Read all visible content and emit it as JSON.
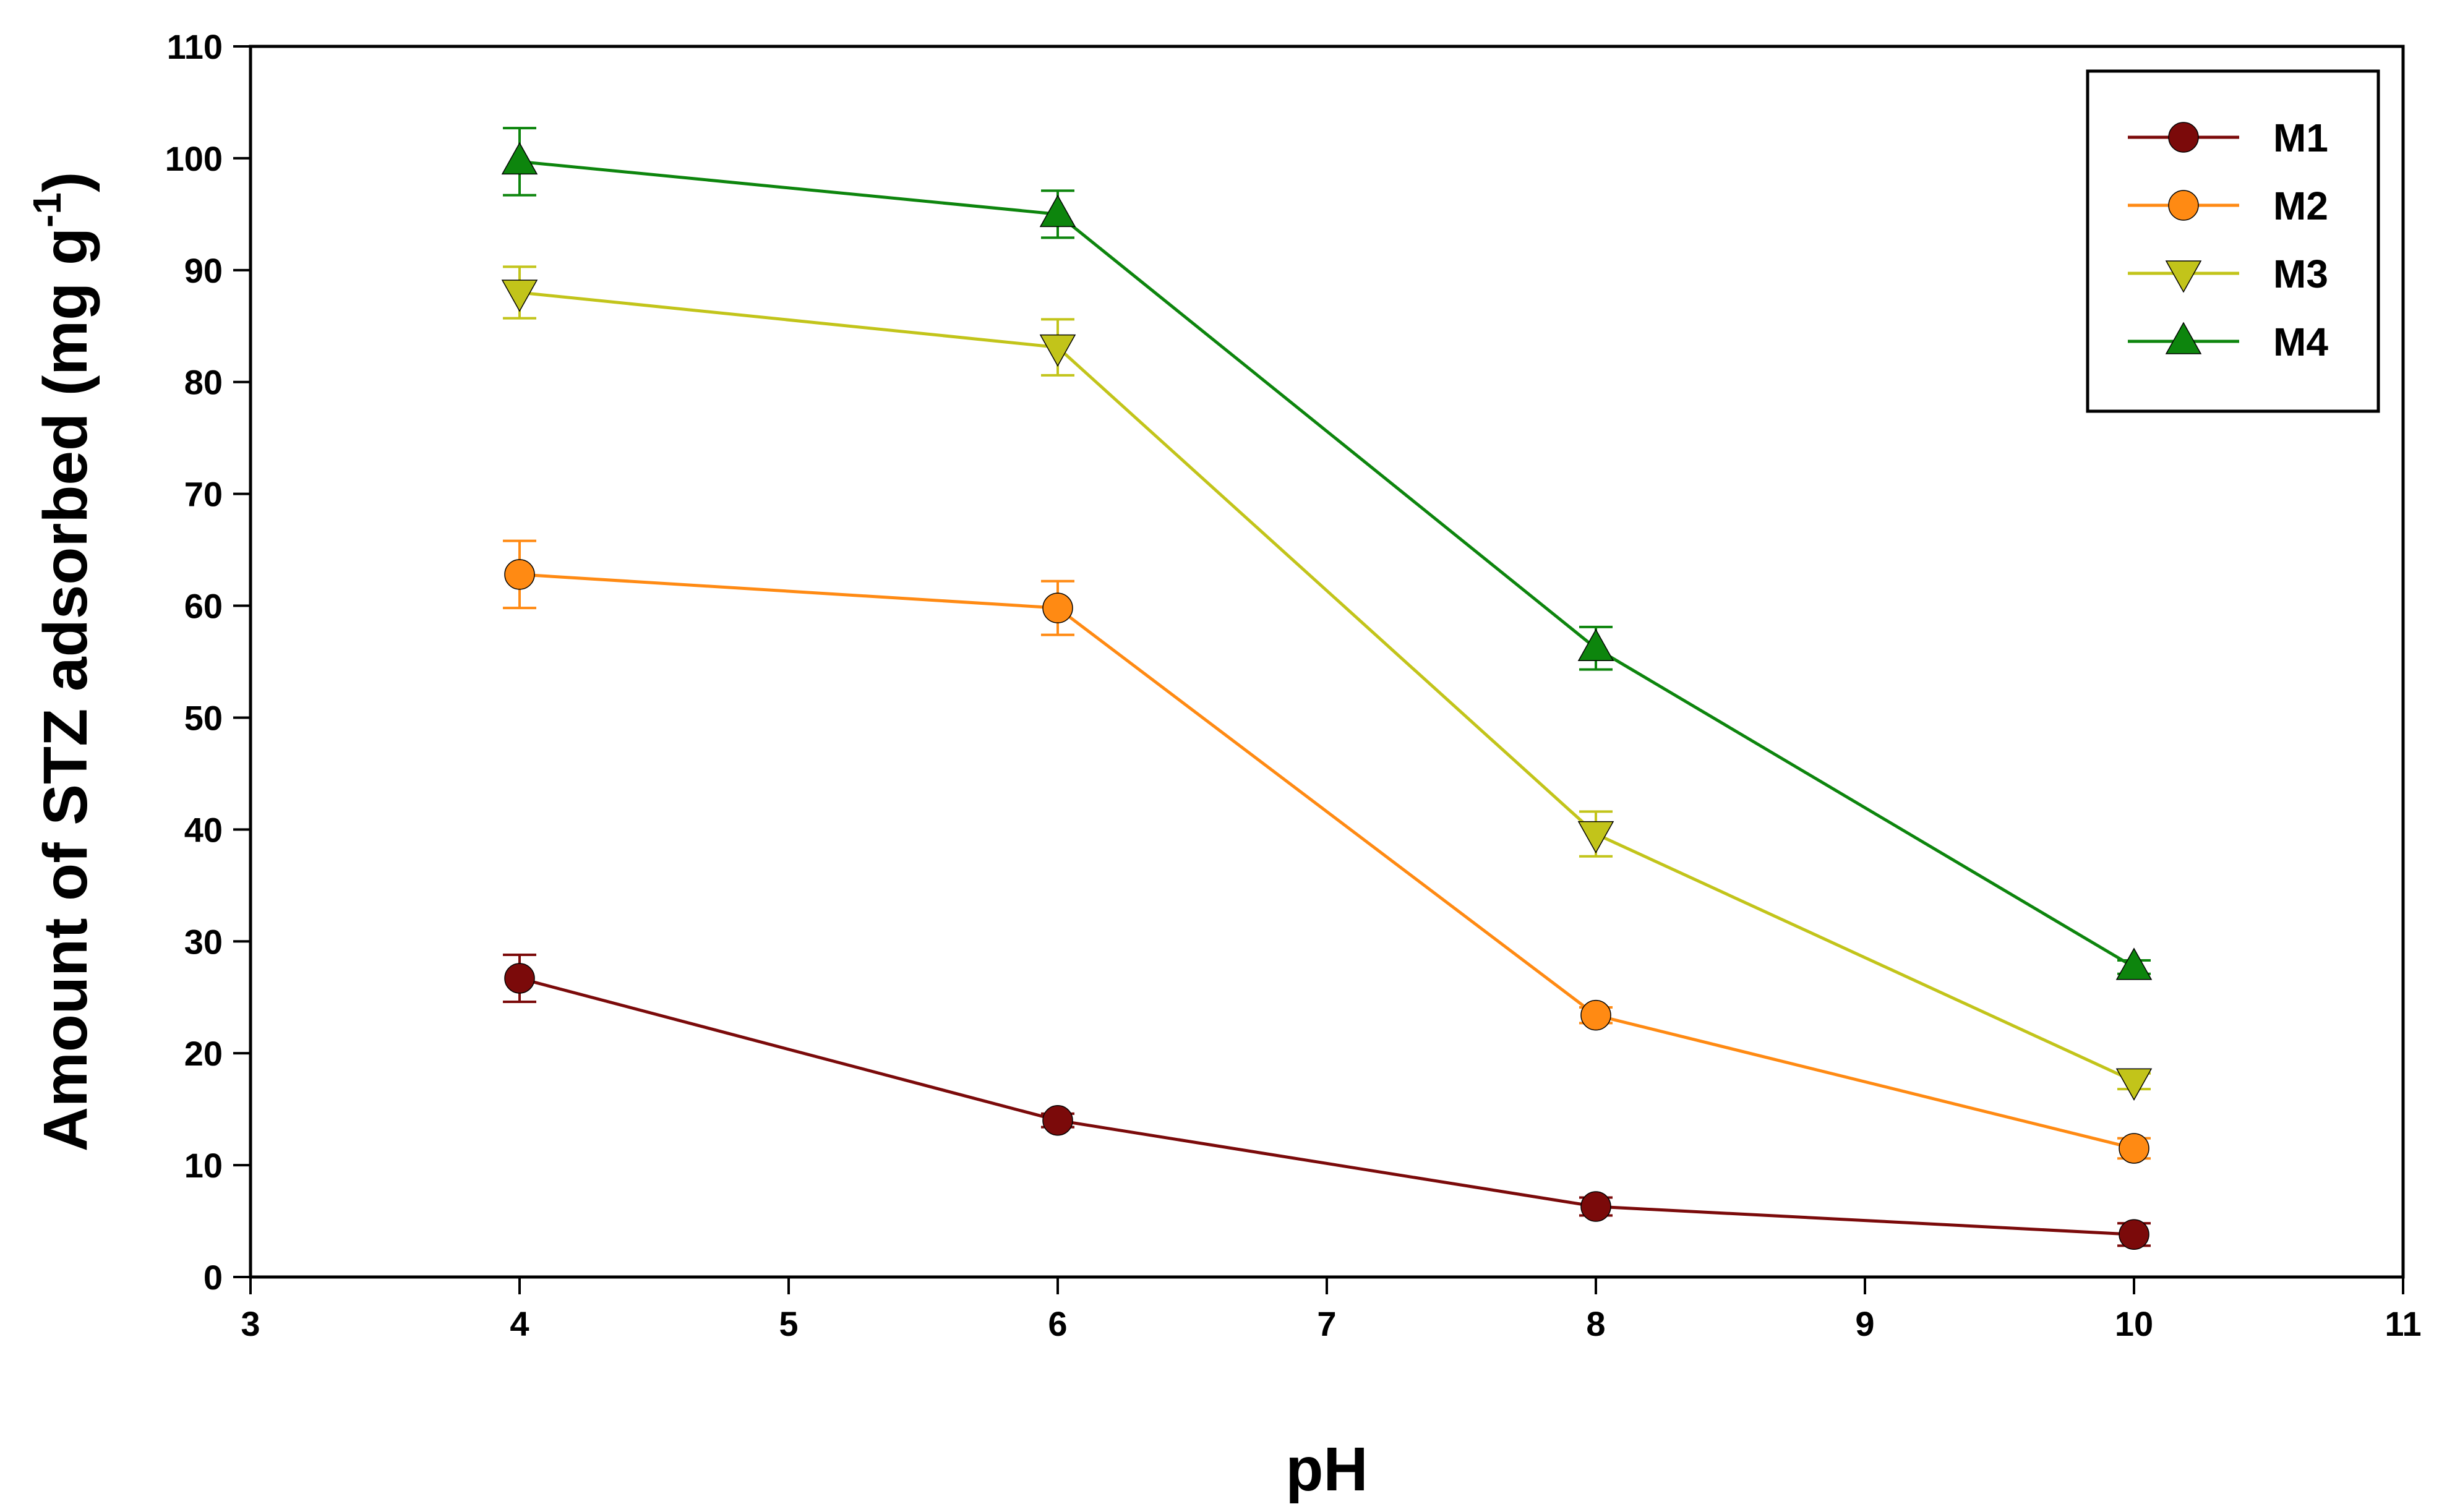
{
  "chart_data": {
    "type": "line",
    "title": "",
    "xlabel": "pH",
    "ylabel": "Amount of STZ adsorbed (mg g",
    "ylabel_superscript": "-1",
    "ylabel_suffix": ")",
    "xlim": [
      3,
      11
    ],
    "ylim": [
      0,
      110
    ],
    "xticks": [
      3,
      4,
      5,
      6,
      7,
      8,
      9,
      10,
      11
    ],
    "yticks": [
      0,
      10,
      20,
      30,
      40,
      50,
      60,
      70,
      80,
      90,
      100,
      110
    ],
    "x": [
      4,
      6,
      8,
      10
    ],
    "legend_position": "top-right",
    "series": [
      {
        "name": "M1",
        "color": "#7b0a0a",
        "marker": "circle",
        "values": [
          26.7,
          14.0,
          6.3,
          3.8
        ],
        "errors": [
          2.1,
          0.6,
          0.8,
          1.0
        ]
      },
      {
        "name": "M2",
        "color": "#ff8a13",
        "marker": "circle",
        "values": [
          62.8,
          59.8,
          23.4,
          11.5
        ],
        "errors": [
          3.0,
          2.4,
          0.7,
          0.9
        ]
      },
      {
        "name": "M3",
        "color": "#c2c41a",
        "marker": "triangle-down",
        "values": [
          88.0,
          83.1,
          39.6,
          17.5
        ],
        "errors": [
          2.3,
          2.5,
          2.0,
          0.7
        ]
      },
      {
        "name": "M4",
        "color": "#0d850d",
        "marker": "triangle-up",
        "values": [
          99.7,
          95.0,
          56.2,
          27.7
        ],
        "errors": [
          3.0,
          2.1,
          1.9,
          0.6
        ]
      }
    ]
  }
}
